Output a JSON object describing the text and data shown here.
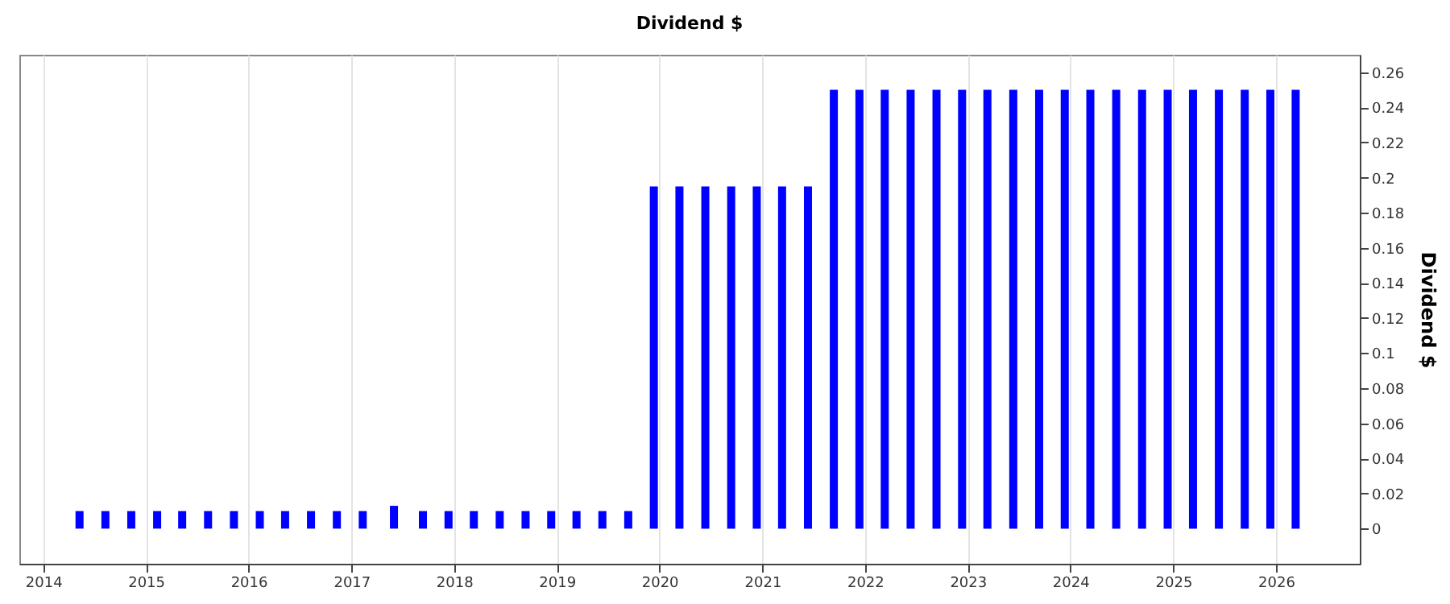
{
  "chart_data": {
    "type": "bar",
    "title": "Dividend $",
    "ylabel": "Dividend $",
    "x": [
      "2014-05-10",
      "2014-08-10",
      "2014-11-10",
      "2015-02-10",
      "2015-05-10",
      "2015-08-10",
      "2015-11-10",
      "2016-02-10",
      "2016-05-10",
      "2016-08-10",
      "2016-11-10",
      "2017-02-10",
      "2017-06-01",
      "2017-09-12",
      "2017-12-12",
      "2018-03-12",
      "2018-06-12",
      "2018-09-12",
      "2018-12-12",
      "2019-03-12",
      "2019-06-12",
      "2019-09-12",
      "2019-12-12",
      "2020-03-12",
      "2020-06-12",
      "2020-09-12",
      "2020-12-12",
      "2021-03-12",
      "2021-06-12",
      "2021-09-12",
      "2021-12-12",
      "2022-03-12",
      "2022-06-12",
      "2022-09-12",
      "2022-12-12",
      "2023-03-12",
      "2023-06-12",
      "2023-09-12",
      "2023-12-12",
      "2024-03-12",
      "2024-06-12",
      "2024-09-12",
      "2024-12-12",
      "2025-03-12",
      "2025-06-12",
      "2025-09-12",
      "2025-12-12",
      "2026-03-12"
    ],
    "values": [
      0.01,
      0.01,
      0.01,
      0.01,
      0.01,
      0.01,
      0.01,
      0.01,
      0.01,
      0.01,
      0.01,
      0.01,
      0.013,
      0.01,
      0.01,
      0.01,
      0.01,
      0.01,
      0.01,
      0.01,
      0.01,
      0.01,
      0.195,
      0.195,
      0.195,
      0.195,
      0.195,
      0.195,
      0.195,
      0.25,
      0.25,
      0.25,
      0.25,
      0.25,
      0.25,
      0.25,
      0.25,
      0.25,
      0.25,
      0.25,
      0.25,
      0.25,
      0.25,
      0.25,
      0.25,
      0.25,
      0.25,
      0.25
    ],
    "color": "#0000ff",
    "xlim": [
      "2013-10-08",
      "2026-10-26"
    ],
    "xticks": [
      "2014",
      "2015",
      "2016",
      "2017",
      "2018",
      "2019",
      "2020",
      "2021",
      "2022",
      "2023",
      "2024",
      "2025",
      "2026"
    ],
    "ylim": [
      -0.02,
      0.27
    ],
    "yticks": [
      0,
      0.02,
      0.04,
      0.06,
      0.08,
      0.1,
      0.12,
      0.14,
      0.16,
      0.18,
      0.2,
      0.22,
      0.24,
      0.26
    ],
    "grid": "x"
  }
}
